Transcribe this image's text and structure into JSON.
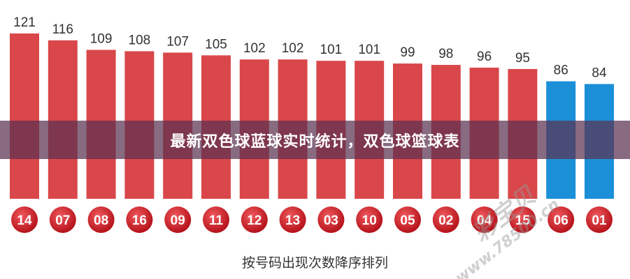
{
  "banner_title": "最新双色球蓝球实时统计，双色球篮球表",
  "watermark": {
    "logo": "彩宝贝",
    "url": "www.78500.cn"
  },
  "colors": {
    "red_bar": "#d9474a",
    "blue_bar": "#1b8fd8",
    "ball": "#cc1f25"
  },
  "chart_data": {
    "type": "bar",
    "categories": [
      "14",
      "07",
      "08",
      "16",
      "09",
      "11",
      "12",
      "13",
      "03",
      "10",
      "05",
      "02",
      "04",
      "15",
      "06",
      "01"
    ],
    "values": [
      121,
      116,
      109,
      108,
      107,
      105,
      102,
      102,
      101,
      101,
      99,
      98,
      96,
      95,
      86,
      84
    ],
    "highlight_blue": [
      "06",
      "01"
    ],
    "xlabel": "按号码出现次数降序排列",
    "ylim": [
      0,
      125
    ],
    "grid": false
  }
}
